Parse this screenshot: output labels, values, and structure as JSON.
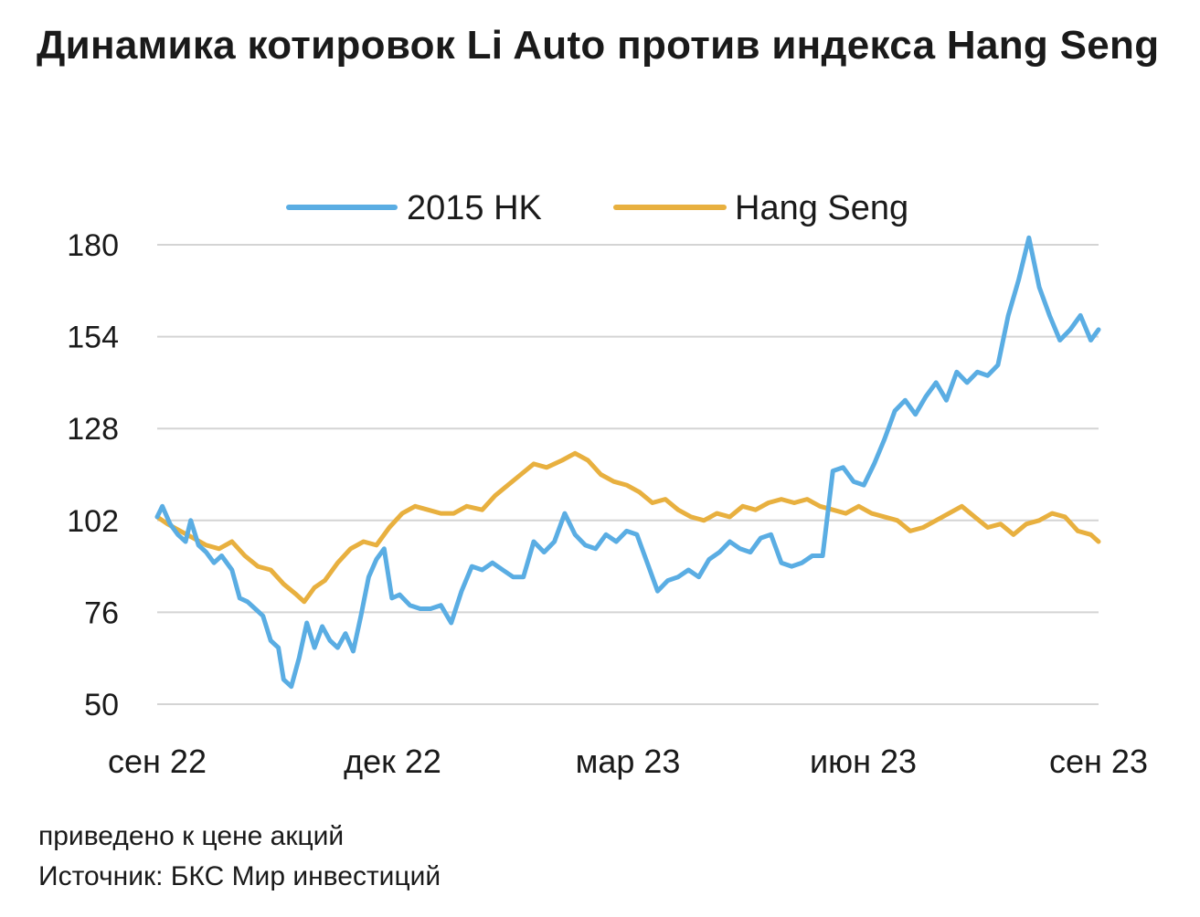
{
  "title": "Динамика котировок Li Auto против индекса Hang Seng",
  "note": "приведено к цене акций",
  "source": "Источник: БКС Мир инвестиций",
  "chart_data": {
    "type": "line",
    "title": "Динамика котировок Li Auto против индекса Hang Seng",
    "xlabel": "",
    "ylabel": "",
    "ylim": [
      50,
      180
    ],
    "yticks": [
      50,
      76,
      102,
      128,
      154,
      180
    ],
    "xticks": [
      "сен 22",
      "дек 22",
      "мар 23",
      "июн 23",
      "сен 23"
    ],
    "xlim": [
      "2022-09-01",
      "2023-09-01"
    ],
    "grid": "horizontal",
    "legend_position": "top",
    "series": [
      {
        "name": "2015 HK",
        "color": "#5AADE3",
        "x": [
          "2022-09-01",
          "2022-09-03",
          "2022-09-06",
          "2022-09-09",
          "2022-09-12",
          "2022-09-14",
          "2022-09-17",
          "2022-09-20",
          "2022-09-23",
          "2022-09-26",
          "2022-09-30",
          "2022-10-03",
          "2022-10-06",
          "2022-10-09",
          "2022-10-12",
          "2022-10-15",
          "2022-10-18",
          "2022-10-20",
          "2022-10-23",
          "2022-10-26",
          "2022-10-29",
          "2022-11-01",
          "2022-11-04",
          "2022-11-07",
          "2022-11-10",
          "2022-11-13",
          "2022-11-16",
          "2022-11-19",
          "2022-11-22",
          "2022-11-25",
          "2022-11-28",
          "2022-12-01",
          "2022-12-04",
          "2022-12-08",
          "2022-12-12",
          "2022-12-16",
          "2022-12-20",
          "2022-12-24",
          "2022-12-28",
          "2023-01-01",
          "2023-01-05",
          "2023-01-09",
          "2023-01-13",
          "2023-01-17",
          "2023-01-21",
          "2023-01-25",
          "2023-01-29",
          "2023-02-02",
          "2023-02-06",
          "2023-02-10",
          "2023-02-14",
          "2023-02-18",
          "2023-02-22",
          "2023-02-26",
          "2023-03-02",
          "2023-03-06",
          "2023-03-10",
          "2023-03-14",
          "2023-03-18",
          "2023-03-22",
          "2023-03-26",
          "2023-03-30",
          "2023-04-03",
          "2023-04-07",
          "2023-04-11",
          "2023-04-15",
          "2023-04-19",
          "2023-04-23",
          "2023-04-27",
          "2023-05-01",
          "2023-05-05",
          "2023-05-09",
          "2023-05-13",
          "2023-05-17",
          "2023-05-21",
          "2023-05-25",
          "2023-05-29",
          "2023-06-02",
          "2023-06-06",
          "2023-06-10",
          "2023-06-14",
          "2023-06-18",
          "2023-06-22",
          "2023-06-26",
          "2023-06-30",
          "2023-07-04",
          "2023-07-08",
          "2023-07-12",
          "2023-07-16",
          "2023-07-20",
          "2023-07-24",
          "2023-07-28",
          "2023-08-01",
          "2023-08-05",
          "2023-08-09",
          "2023-08-13",
          "2023-08-17",
          "2023-08-21",
          "2023-08-25",
          "2023-08-29",
          "2023-09-01"
        ],
        "values": [
          103,
          106,
          101,
          98,
          96,
          102,
          95,
          93,
          90,
          92,
          88,
          80,
          79,
          77,
          75,
          68,
          66,
          57,
          55,
          63,
          73,
          66,
          72,
          68,
          66,
          70,
          65,
          75,
          86,
          91,
          94,
          80,
          81,
          78,
          77,
          77,
          78,
          73,
          82,
          89,
          88,
          90,
          88,
          86,
          86,
          96,
          93,
          96,
          104,
          98,
          95,
          94,
          98,
          96,
          99,
          98,
          90,
          82,
          85,
          86,
          88,
          86,
          91,
          93,
          96,
          94,
          93,
          97,
          98,
          90,
          89,
          90,
          92,
          92,
          116,
          117,
          113,
          112,
          118,
          125,
          133,
          136,
          132,
          137,
          141,
          136,
          144,
          141,
          144,
          143,
          146,
          160,
          170,
          182,
          168,
          160,
          153,
          156,
          160,
          153,
          156
        ]
      },
      {
        "name": "Hang Seng",
        "color": "#E8B03F",
        "x": [
          "2022-09-01",
          "2022-09-05",
          "2022-09-10",
          "2022-09-15",
          "2022-09-20",
          "2022-09-25",
          "2022-09-30",
          "2022-10-05",
          "2022-10-10",
          "2022-10-15",
          "2022-10-20",
          "2022-10-25",
          "2022-10-28",
          "2022-11-01",
          "2022-11-05",
          "2022-11-10",
          "2022-11-15",
          "2022-11-20",
          "2022-11-25",
          "2022-11-30",
          "2022-12-05",
          "2022-12-10",
          "2022-12-15",
          "2022-12-20",
          "2022-12-25",
          "2022-12-30",
          "2023-01-05",
          "2023-01-10",
          "2023-01-15",
          "2023-01-20",
          "2023-01-25",
          "2023-01-30",
          "2023-02-05",
          "2023-02-10",
          "2023-02-15",
          "2023-02-20",
          "2023-02-25",
          "2023-03-02",
          "2023-03-07",
          "2023-03-12",
          "2023-03-17",
          "2023-03-22",
          "2023-03-27",
          "2023-04-01",
          "2023-04-06",
          "2023-04-11",
          "2023-04-16",
          "2023-04-21",
          "2023-04-26",
          "2023-05-01",
          "2023-05-06",
          "2023-05-11",
          "2023-05-16",
          "2023-05-21",
          "2023-05-26",
          "2023-05-31",
          "2023-06-05",
          "2023-06-10",
          "2023-06-15",
          "2023-06-20",
          "2023-06-25",
          "2023-06-30",
          "2023-07-05",
          "2023-07-10",
          "2023-07-15",
          "2023-07-20",
          "2023-07-25",
          "2023-07-30",
          "2023-08-04",
          "2023-08-09",
          "2023-08-14",
          "2023-08-19",
          "2023-08-24",
          "2023-08-29",
          "2023-09-01"
        ],
        "values": [
          103,
          101,
          99,
          97,
          95,
          94,
          96,
          92,
          89,
          88,
          84,
          81,
          79,
          83,
          85,
          90,
          94,
          96,
          95,
          100,
          104,
          106,
          105,
          104,
          104,
          106,
          105,
          109,
          112,
          115,
          118,
          117,
          119,
          121,
          119,
          115,
          113,
          112,
          110,
          107,
          108,
          105,
          103,
          102,
          104,
          103,
          106,
          105,
          107,
          108,
          107,
          108,
          106,
          105,
          104,
          106,
          104,
          103,
          102,
          99,
          100,
          102,
          104,
          106,
          103,
          100,
          101,
          98,
          101,
          102,
          104,
          103,
          99,
          98,
          96
        ]
      }
    ]
  }
}
